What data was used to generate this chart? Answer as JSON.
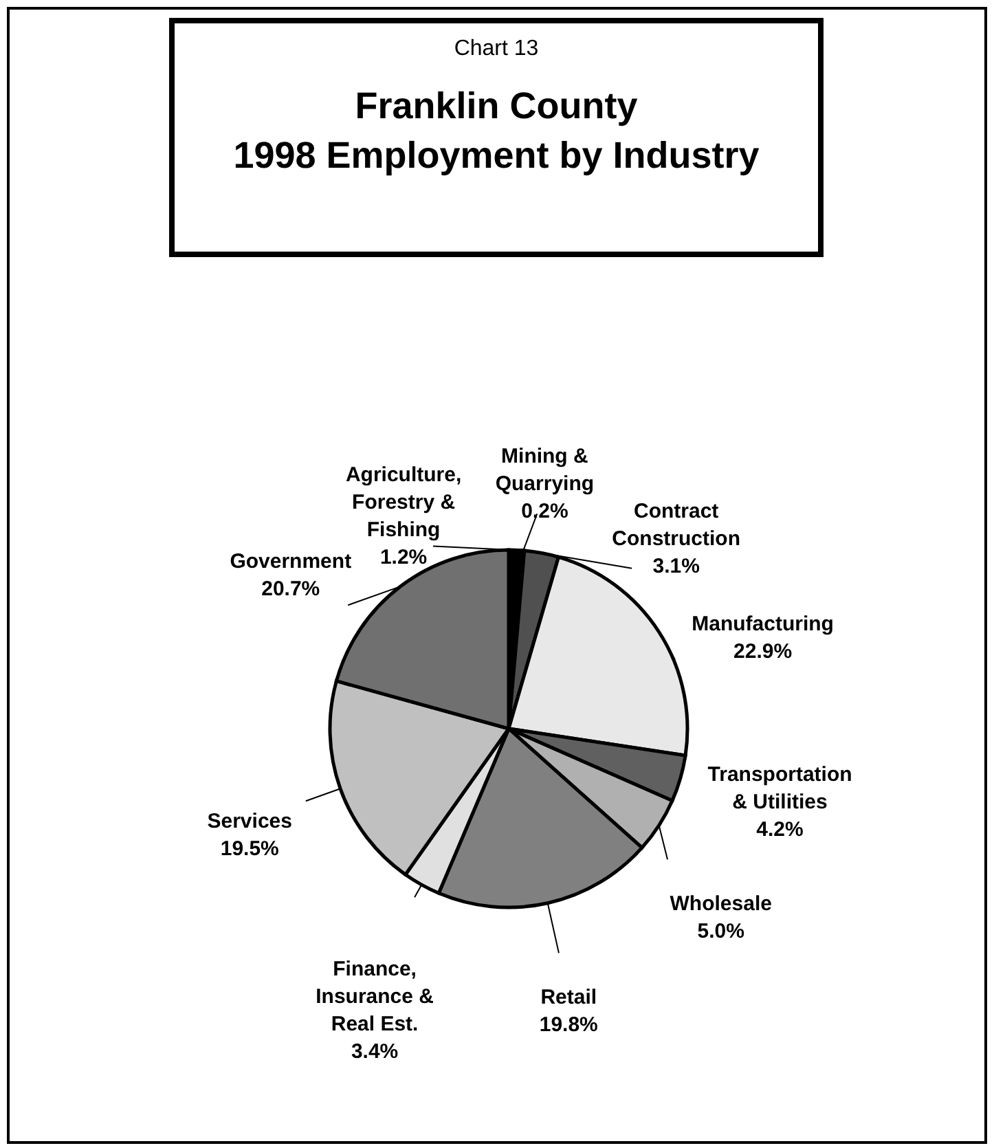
{
  "chart_data": {
    "type": "pie",
    "subtitle": "Chart 13",
    "title": "Franklin County\n1998 Employment by Industry",
    "categories": [
      "Agriculture, Forestry & Fishing",
      "Mining & Quarrying",
      "Contract Construction",
      "Manufacturing",
      "Transportation & Utilities",
      "Wholesale",
      "Retail",
      "Finance, Insurance & Real Est.",
      "Services",
      "Government"
    ],
    "values": [
      1.2,
      0.2,
      3.1,
      22.9,
      4.2,
      5.0,
      19.8,
      3.4,
      19.5,
      20.7
    ],
    "colors": [
      "#000000",
      "#404040",
      "#505050",
      "#e8e8e8",
      "#606060",
      "#b0b0b0",
      "#808080",
      "#e0e0e0",
      "#c0c0c0",
      "#707070"
    ],
    "value_labels": [
      "1.2%",
      "0.2%",
      "3.1%",
      "22.9%",
      "4.2%",
      "5.0%",
      "19.8%",
      "3.4%",
      "19.5%",
      "20.7%"
    ]
  }
}
